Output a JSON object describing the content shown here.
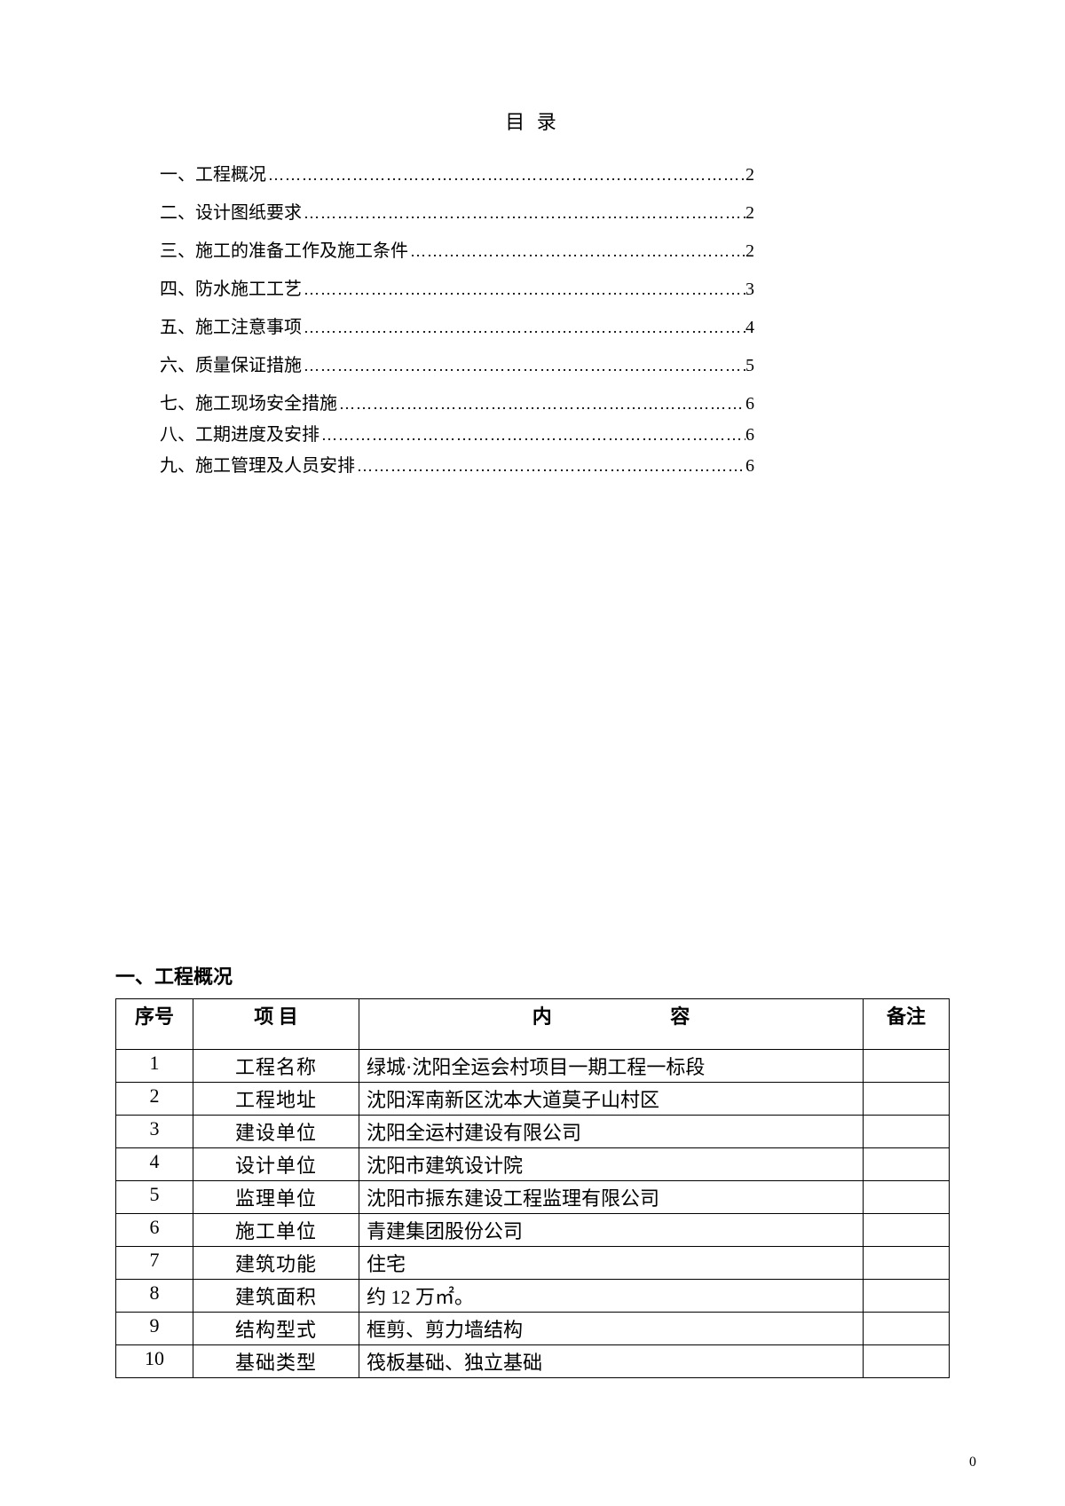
{
  "toc_title": "目 录",
  "toc": [
    {
      "label": "一、工程概况",
      "page": "2"
    },
    {
      "label": "二、设计图纸要求",
      "page": "2"
    },
    {
      "label": "三、施工的准备工作及施工条件",
      "page": "2"
    },
    {
      "label": "四、防水施工工艺",
      "page": "3"
    },
    {
      "label": "五、施工注意事项",
      "page": "4"
    },
    {
      "label": "六、质量保证措施",
      "page": "5"
    },
    {
      "label": "七、施工现场安全措施",
      "page": "6"
    },
    {
      "label": "八、工期进度及安排",
      "page": "6"
    },
    {
      "label": "九、施工管理及人员安排",
      "page": "6"
    }
  ],
  "section_heading": "一、工程概况",
  "table": {
    "headers": {
      "num": "序号",
      "item": "项  目",
      "content_a": "内",
      "content_b": "容",
      "remark": "备注"
    },
    "rows": [
      {
        "num": "1",
        "item": "工程名称",
        "content": "绿城·沈阳全运会村项目一期工程一标段",
        "remark": ""
      },
      {
        "num": "2",
        "item": "工程地址",
        "content": "沈阳浑南新区沈本大道莫子山村区",
        "remark": ""
      },
      {
        "num": "3",
        "item": "建设单位",
        "content": "沈阳全运村建设有限公司",
        "remark": ""
      },
      {
        "num": "4",
        "item": "设计单位",
        "content": "沈阳市建筑设计院",
        "remark": ""
      },
      {
        "num": "5",
        "item": "监理单位",
        "content": "沈阳市振东建设工程监理有限公司",
        "remark": ""
      },
      {
        "num": "6",
        "item": "施工单位",
        "content": "青建集团股份公司",
        "remark": ""
      },
      {
        "num": "7",
        "item": "建筑功能",
        "content": "住宅",
        "remark": ""
      },
      {
        "num": "8",
        "item": "建筑面积",
        "content": "约 12 万㎡。",
        "remark": ""
      },
      {
        "num": "9",
        "item": "结构型式",
        "content": "框剪、剪力墙结构",
        "remark": ""
      },
      {
        "num": "10",
        "item": "基础类型",
        "content": "筏板基础、独立基础",
        "remark": ""
      }
    ]
  },
  "footer_page": "0",
  "dots": "……………………………………………………………………………………"
}
